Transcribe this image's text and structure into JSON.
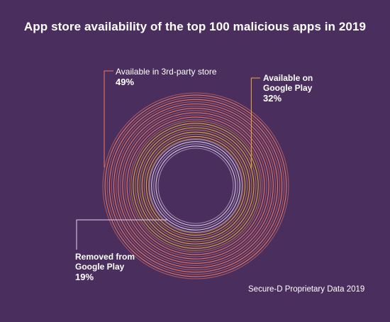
{
  "chart_data": {
    "type": "pie",
    "title": "App store availability of the top 100 malicious apps in 2019",
    "source": "Secure-D Proprietary Data 2019",
    "categories": [
      "Available in 3rd-party store",
      "Available on Google Play",
      "Removed from Google Play"
    ],
    "values": [
      49,
      32,
      19
    ],
    "labels": [
      {
        "name": "Available in 3rd-party store",
        "value_text": "49%"
      },
      {
        "name_lines": [
          "Available on",
          "Google Play"
        ],
        "value_text": "32%"
      },
      {
        "name_lines": [
          "Removed from",
          "Google Play"
        ],
        "value_text": "19%"
      }
    ],
    "colors": [
      "#ee7a65",
      "#f2a83c",
      "#e2d2ee"
    ],
    "background": "#4a2f5e"
  }
}
